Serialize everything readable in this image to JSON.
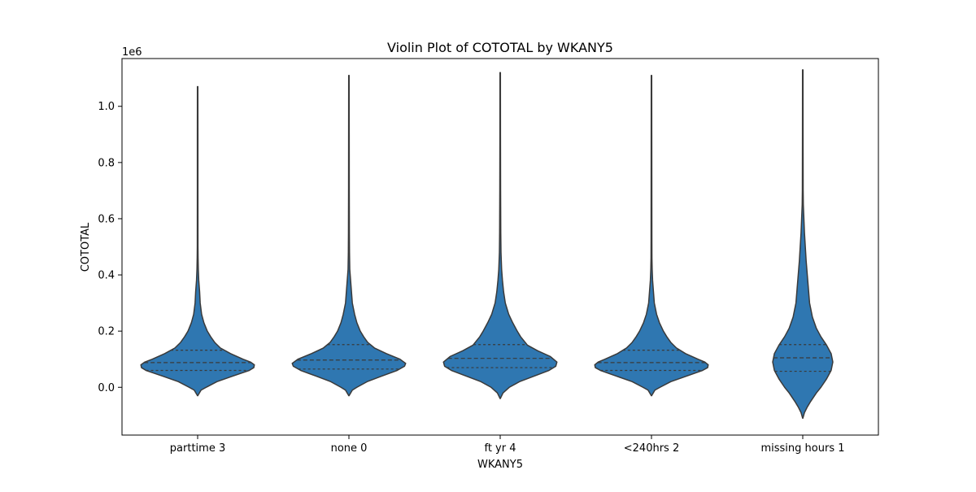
{
  "chart_data": {
    "type": "violin",
    "title": "Violin Plot of COTOTAL by WKANY5",
    "xlabel": "WKANY5",
    "ylabel": "COTOTAL",
    "y_offset_label": "1e6",
    "y_ticks": [
      0.0,
      0.2,
      0.4,
      0.6,
      0.8,
      1.0
    ],
    "y_tick_labels": [
      "0.0",
      "0.2",
      "0.4",
      "0.6",
      "0.8",
      "1.0"
    ],
    "ylim": [
      -0.17,
      1.17
    ],
    "grid": false,
    "legend": "none",
    "violin_color": "#2f77b1",
    "edge_color": "#3a3a3a",
    "categories": [
      "parttime 3",
      "none 0",
      "ft yr 4",
      "<240hrs 2",
      "missing hours 1"
    ],
    "series": [
      {
        "category": "parttime 3",
        "q1": 0.06,
        "median": 0.088,
        "q3": 0.132,
        "min": -0.03,
        "max": 1.07,
        "profile": [
          [
            -0.03,
            0.002
          ],
          [
            -0.01,
            0.06
          ],
          [
            0.0,
            0.15
          ],
          [
            0.02,
            0.34
          ],
          [
            0.04,
            0.62
          ],
          [
            0.06,
            0.91
          ],
          [
            0.07,
            0.99
          ],
          [
            0.08,
            1.0
          ],
          [
            0.09,
            0.93
          ],
          [
            0.1,
            0.8
          ],
          [
            0.12,
            0.58
          ],
          [
            0.14,
            0.4
          ],
          [
            0.16,
            0.3
          ],
          [
            0.18,
            0.23
          ],
          [
            0.2,
            0.17
          ],
          [
            0.23,
            0.11
          ],
          [
            0.26,
            0.07
          ],
          [
            0.3,
            0.045
          ],
          [
            0.34,
            0.035
          ],
          [
            0.38,
            0.02
          ],
          [
            0.42,
            0.012
          ],
          [
            0.46,
            0.008
          ],
          [
            0.5,
            0.006
          ],
          [
            0.7,
            0.005
          ],
          [
            0.9,
            0.005
          ],
          [
            1.07,
            0.004
          ]
        ]
      },
      {
        "category": "none 0",
        "q1": 0.065,
        "median": 0.097,
        "q3": 0.152,
        "min": -0.03,
        "max": 1.11,
        "profile": [
          [
            -0.03,
            0.002
          ],
          [
            -0.01,
            0.06
          ],
          [
            0.0,
            0.14
          ],
          [
            0.02,
            0.32
          ],
          [
            0.04,
            0.58
          ],
          [
            0.06,
            0.85
          ],
          [
            0.075,
            0.98
          ],
          [
            0.085,
            1.0
          ],
          [
            0.1,
            0.9
          ],
          [
            0.12,
            0.66
          ],
          [
            0.14,
            0.45
          ],
          [
            0.16,
            0.33
          ],
          [
            0.18,
            0.26
          ],
          [
            0.2,
            0.2
          ],
          [
            0.23,
            0.14
          ],
          [
            0.26,
            0.1
          ],
          [
            0.3,
            0.06
          ],
          [
            0.34,
            0.045
          ],
          [
            0.38,
            0.03
          ],
          [
            0.42,
            0.015
          ],
          [
            0.48,
            0.01
          ],
          [
            0.55,
            0.008
          ],
          [
            0.7,
            0.006
          ],
          [
            0.9,
            0.005
          ],
          [
            1.11,
            0.004
          ]
        ]
      },
      {
        "category": "ft yr 4",
        "q1": 0.07,
        "median": 0.103,
        "q3": 0.152,
        "min": -0.04,
        "max": 1.12,
        "profile": [
          [
            -0.04,
            0.002
          ],
          [
            -0.02,
            0.05
          ],
          [
            0.0,
            0.16
          ],
          [
            0.02,
            0.34
          ],
          [
            0.04,
            0.6
          ],
          [
            0.06,
            0.86
          ],
          [
            0.075,
            0.98
          ],
          [
            0.09,
            1.0
          ],
          [
            0.11,
            0.88
          ],
          [
            0.13,
            0.66
          ],
          [
            0.15,
            0.48
          ],
          [
            0.18,
            0.36
          ],
          [
            0.2,
            0.3
          ],
          [
            0.23,
            0.22
          ],
          [
            0.26,
            0.15
          ],
          [
            0.3,
            0.09
          ],
          [
            0.34,
            0.06
          ],
          [
            0.38,
            0.04
          ],
          [
            0.42,
            0.025
          ],
          [
            0.48,
            0.014
          ],
          [
            0.55,
            0.01
          ],
          [
            0.7,
            0.007
          ],
          [
            0.9,
            0.005
          ],
          [
            1.12,
            0.004
          ]
        ]
      },
      {
        "category": "<240hrs 2",
        "q1": 0.06,
        "median": 0.088,
        "q3": 0.132,
        "min": -0.03,
        "max": 1.11,
        "profile": [
          [
            -0.03,
            0.002
          ],
          [
            -0.01,
            0.06
          ],
          [
            0.0,
            0.15
          ],
          [
            0.02,
            0.34
          ],
          [
            0.04,
            0.62
          ],
          [
            0.06,
            0.9
          ],
          [
            0.07,
            0.99
          ],
          [
            0.08,
            1.0
          ],
          [
            0.09,
            0.94
          ],
          [
            0.1,
            0.82
          ],
          [
            0.12,
            0.6
          ],
          [
            0.14,
            0.44
          ],
          [
            0.16,
            0.34
          ],
          [
            0.18,
            0.27
          ],
          [
            0.2,
            0.21
          ],
          [
            0.23,
            0.14
          ],
          [
            0.26,
            0.09
          ],
          [
            0.3,
            0.05
          ],
          [
            0.34,
            0.035
          ],
          [
            0.38,
            0.02
          ],
          [
            0.42,
            0.012
          ],
          [
            0.46,
            0.008
          ],
          [
            0.52,
            0.007
          ],
          [
            0.7,
            0.006
          ],
          [
            0.9,
            0.005
          ],
          [
            1.11,
            0.004
          ]
        ]
      },
      {
        "category": "missing hours 1",
        "q1": 0.057,
        "median": 0.105,
        "q3": 0.152,
        "min": -0.11,
        "max": 1.13,
        "profile": [
          [
            -0.11,
            0.002
          ],
          [
            -0.09,
            0.03
          ],
          [
            -0.07,
            0.08
          ],
          [
            -0.05,
            0.14
          ],
          [
            -0.02,
            0.24
          ],
          [
            0.0,
            0.32
          ],
          [
            0.03,
            0.42
          ],
          [
            0.06,
            0.5
          ],
          [
            0.09,
            0.53
          ],
          [
            0.12,
            0.5
          ],
          [
            0.15,
            0.42
          ],
          [
            0.18,
            0.32
          ],
          [
            0.21,
            0.24
          ],
          [
            0.25,
            0.17
          ],
          [
            0.3,
            0.12
          ],
          [
            0.35,
            0.1
          ],
          [
            0.4,
            0.08
          ],
          [
            0.45,
            0.06
          ],
          [
            0.5,
            0.045
          ],
          [
            0.55,
            0.03
          ],
          [
            0.6,
            0.02
          ],
          [
            0.65,
            0.01
          ],
          [
            0.7,
            0.007
          ],
          [
            0.9,
            0.005
          ],
          [
            1.13,
            0.004
          ]
        ]
      }
    ]
  }
}
